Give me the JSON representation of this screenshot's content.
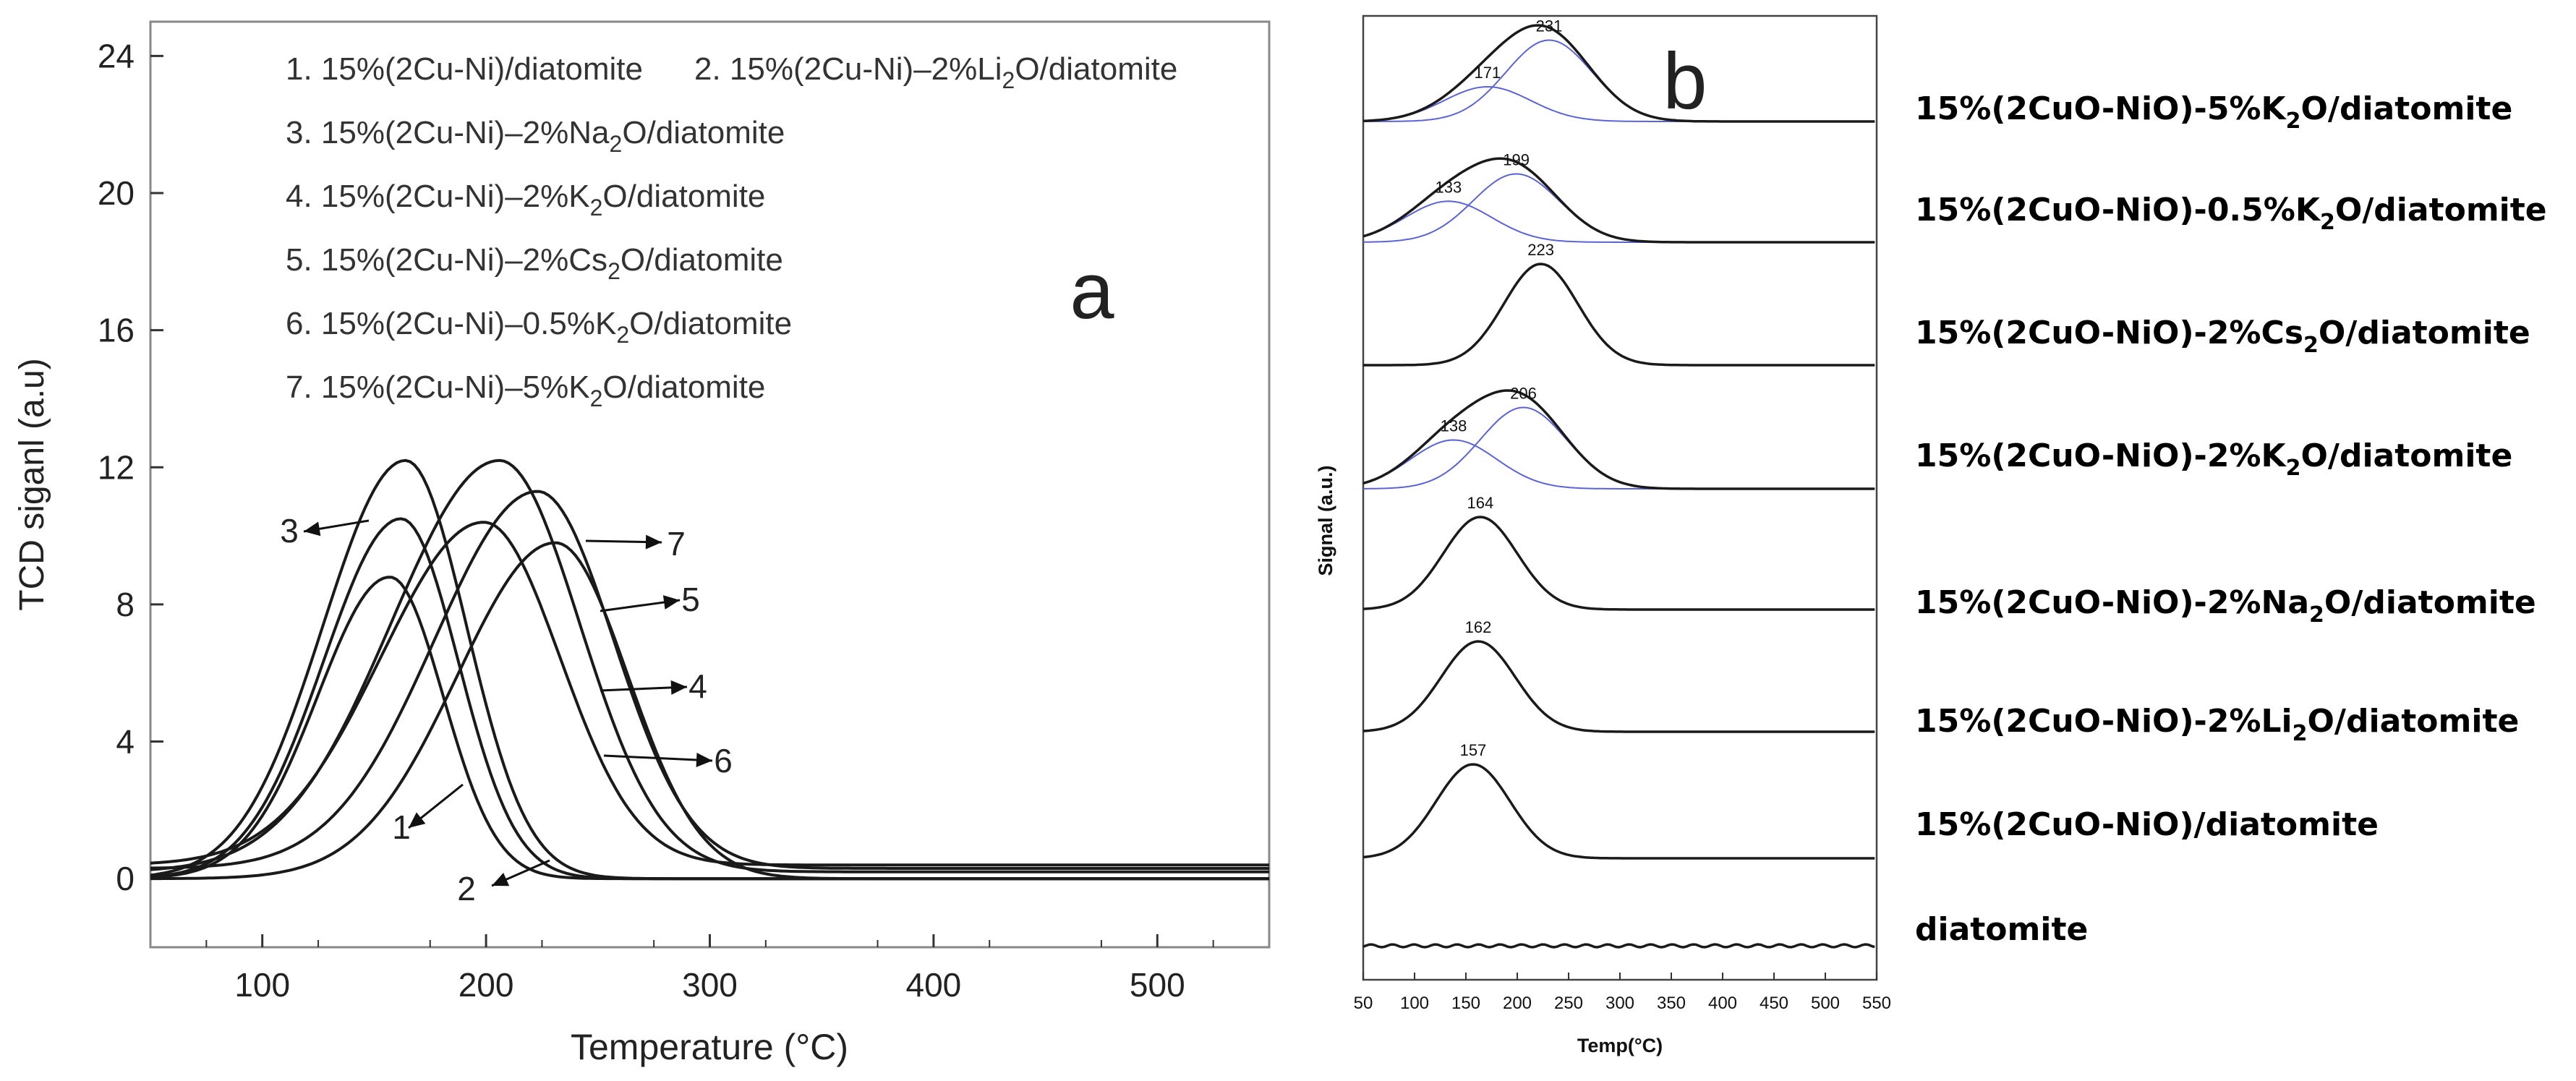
{
  "chart_data": [
    {
      "panel": "a",
      "type": "line",
      "panel_label": "a",
      "xlabel": "Temperature (°C)",
      "ylabel": "TCD siganl (a.u)",
      "xlim": [
        50,
        550
      ],
      "ylim": [
        -2,
        25
      ],
      "x_ticks": [
        100,
        200,
        300,
        400,
        500
      ],
      "y_ticks": [
        0,
        4,
        8,
        12,
        16,
        20,
        24
      ],
      "legend": [
        {
          "num": "1.",
          "pre": "15%(2Cu-Ni)/diatomite",
          "sub": "",
          "post": ""
        },
        {
          "num": "2.",
          "pre": "15%(2Cu-Ni)–2%Li",
          "sub": "2",
          "post": "O/diatomite"
        },
        {
          "num": "3.",
          "pre": "15%(2Cu-Ni)–2%Na",
          "sub": "2",
          "post": "O/diatomite"
        },
        {
          "num": "4.",
          "pre": "15%(2Cu-Ni)–2%K",
          "sub": "2",
          "post": "O/diatomite"
        },
        {
          "num": "5.",
          "pre": "15%(2Cu-Ni)–2%Cs",
          "sub": "2",
          "post": "O/diatomite"
        },
        {
          "num": "6.",
          "pre": "15%(2Cu-Ni)–0.5%K",
          "sub": "2",
          "post": "O/diatomite"
        },
        {
          "num": "7.",
          "pre": "15%(2Cu-Ni)–5%K",
          "sub": "2",
          "post": "O/diatomite"
        }
      ],
      "series": [
        {
          "name": "1",
          "peak_temp": 157,
          "peak_signal": 8.8,
          "width": 28,
          "baseline": 0.0
        },
        {
          "name": "2",
          "peak_temp": 162,
          "peak_signal": 10.5,
          "width": 30,
          "baseline": 0.0
        },
        {
          "name": "3",
          "peak_temp": 164,
          "peak_signal": 12.2,
          "width": 32,
          "baseline": 0.0
        },
        {
          "name": "4",
          "peak_temp": 206,
          "peak_signal": 12.0,
          "width": 42,
          "baseline": 0.2
        },
        {
          "name": "5",
          "peak_temp": 223,
          "peak_signal": 11.0,
          "width": 40,
          "baseline": 0.3
        },
        {
          "name": "6",
          "peak_temp": 199,
          "peak_signal": 10.0,
          "width": 40,
          "baseline": 0.4
        },
        {
          "name": "7",
          "peak_temp": 231,
          "peak_signal": 9.8,
          "width": 38,
          "baseline": 0.0
        }
      ],
      "curve_labels": [
        {
          "text": "1"
        },
        {
          "text": "2"
        },
        {
          "text": "3"
        },
        {
          "text": "4"
        },
        {
          "text": "5"
        },
        {
          "text": "6"
        },
        {
          "text": "7"
        }
      ]
    },
    {
      "panel": "b",
      "type": "line",
      "panel_label": "b",
      "xlabel": "Temp(°C)",
      "ylabel": "Signal (a.u.)",
      "xlim": [
        50,
        550
      ],
      "x_ticks": [
        50,
        100,
        150,
        200,
        250,
        300,
        350,
        400,
        450,
        500,
        550
      ],
      "stack": [
        {
          "pre": "15%(2CuO-NiO)-5%K",
          "sub": "2",
          "post": "O/diatomite",
          "peaks": [
            {
              "temp": 171,
              "label": "171",
              "amp": 0.32
            },
            {
              "temp": 231,
              "label": "231",
              "amp": 0.75
            }
          ],
          "deconvoluted": true
        },
        {
          "pre": "15%(2CuO-NiO)-0.5%K",
          "sub": "2",
          "post": "O/diatomite",
          "peaks": [
            {
              "temp": 133,
              "label": "133",
              "amp": 0.42
            },
            {
              "temp": 199,
              "label": "199",
              "amp": 0.7
            }
          ],
          "deconvoluted": true
        },
        {
          "pre": "15%(2CuO-NiO)-2%Cs",
          "sub": "2",
          "post": "O/diatomite",
          "peaks": [
            {
              "temp": 223,
              "label": "223",
              "amp": 1.0
            }
          ],
          "deconvoluted": false
        },
        {
          "pre": "15%(2CuO-NiO)-2%K",
          "sub": "2",
          "post": "O/diatomite",
          "peaks": [
            {
              "temp": 138,
              "label": "138",
              "amp": 0.45
            },
            {
              "temp": 206,
              "label": "206",
              "amp": 0.75
            }
          ],
          "deconvoluted": true
        },
        {
          "pre": "15%(2CuO-NiO)-2%Na",
          "sub": "2",
          "post": "O/diatomite",
          "peaks": [
            {
              "temp": 164,
              "label": "164",
              "amp": 1.0
            }
          ],
          "deconvoluted": false
        },
        {
          "pre": "15%(2CuO-NiO)-2%Li",
          "sub": "2",
          "post": "O/diatomite",
          "peaks": [
            {
              "temp": 162,
              "label": "162",
              "amp": 1.0
            }
          ],
          "deconvoluted": false
        },
        {
          "pre": "15%(2CuO-NiO)/diatomite",
          "sub": "",
          "post": "",
          "peaks": [
            {
              "temp": 157,
              "label": "157",
              "amp": 1.0
            }
          ],
          "deconvoluted": false
        },
        {
          "pre": "diatomite",
          "sub": "",
          "post": "",
          "peaks": [],
          "deconvoluted": false
        }
      ]
    }
  ],
  "colors": {
    "curve": "#1a1a1a",
    "fit": "#c0392b",
    "deconv": "#5b63d6",
    "axis": "#333333"
  }
}
